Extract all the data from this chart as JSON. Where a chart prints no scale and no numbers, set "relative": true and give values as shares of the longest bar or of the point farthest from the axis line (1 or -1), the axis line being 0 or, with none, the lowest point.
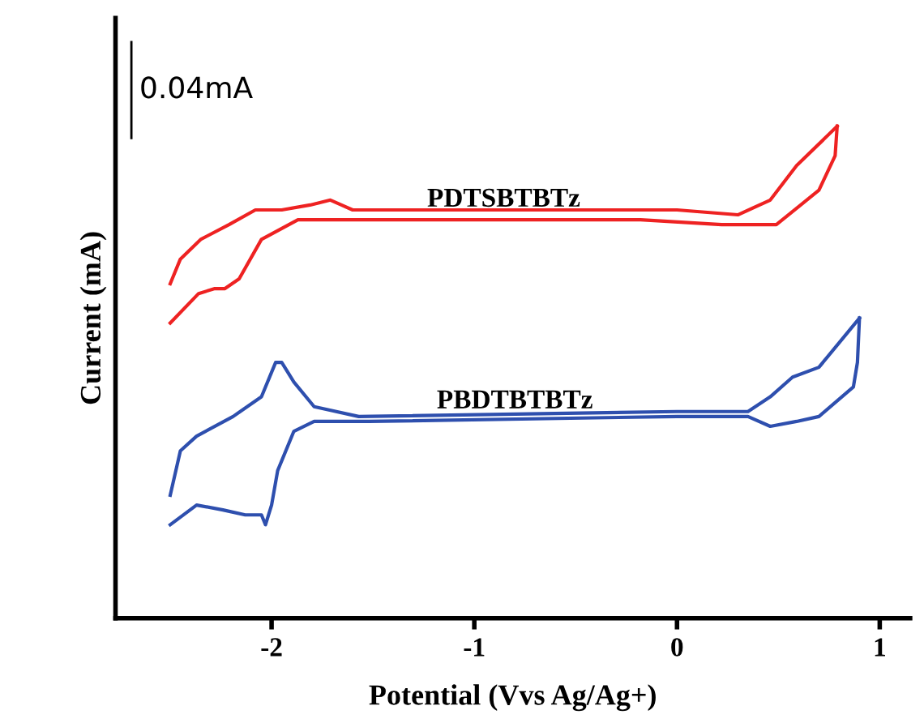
{
  "chart_data": {
    "type": "line",
    "relative": true,
    "xlabel": "Potential (Vvs Ag/Ag+)",
    "ylabel": "Current (mA)",
    "xlim": [
      -2.77,
      1.15
    ],
    "xticks": [
      -2,
      -1,
      0,
      1
    ],
    "grid": false,
    "legend": false,
    "annotations": [
      "0.04mA"
    ],
    "series": [
      {
        "name": "PDTSBTBTz",
        "color": "#ee2222",
        "x": [
          0.79,
          0.78,
          0.7,
          0.49,
          0.22,
          -0.18,
          -1.5,
          -1.87,
          -2.05,
          -2.16,
          -2.23,
          -2.28,
          -2.36,
          -2.5
        ],
        "values": [
          1.0,
          0.94,
          0.87,
          0.8,
          0.8,
          0.81,
          0.81,
          0.81,
          0.77,
          0.69,
          0.67,
          0.67,
          0.66,
          0.6
        ]
      },
      {
        "color": "#ee2222",
        "x": [
          -2.5,
          -2.45,
          -2.35,
          -2.21,
          -2.08,
          -1.95,
          -1.81,
          -1.71,
          -1.6,
          0.0,
          0.3,
          0.46,
          0.59,
          0.79
        ],
        "values": [
          0.68,
          0.73,
          0.77,
          0.8,
          0.83,
          0.83,
          0.84,
          0.85,
          0.83,
          0.83,
          0.82,
          0.85,
          0.92,
          1.0
        ]
      },
      {
        "name": "PBDTBTBTz",
        "color": "#2e4fae",
        "x": [
          0.9,
          0.89,
          0.87,
          0.7,
          0.59,
          0.46,
          0.35,
          0.0,
          -1.52,
          -1.79,
          -1.89,
          -1.97,
          -2.0,
          -2.03,
          -2.05,
          -2.13,
          -2.24,
          -2.37,
          -2.5
        ],
        "values": [
          0.61,
          0.52,
          0.47,
          0.41,
          0.4,
          0.39,
          0.41,
          0.41,
          0.4,
          0.4,
          0.38,
          0.3,
          0.23,
          0.19,
          0.21,
          0.21,
          0.22,
          0.23,
          0.19
        ]
      },
      {
        "color": "#2e4fae",
        "x": [
          -2.5,
          -2.45,
          -2.37,
          -2.19,
          -2.05,
          -1.98,
          -1.95,
          -1.89,
          -1.79,
          -1.57,
          0.0,
          0.35,
          0.46,
          0.57,
          0.7,
          0.78,
          0.9
        ],
        "values": [
          0.25,
          0.34,
          0.37,
          0.41,
          0.45,
          0.52,
          0.52,
          0.48,
          0.43,
          0.41,
          0.42,
          0.42,
          0.45,
          0.49,
          0.51,
          0.55,
          0.61
        ]
      }
    ]
  }
}
